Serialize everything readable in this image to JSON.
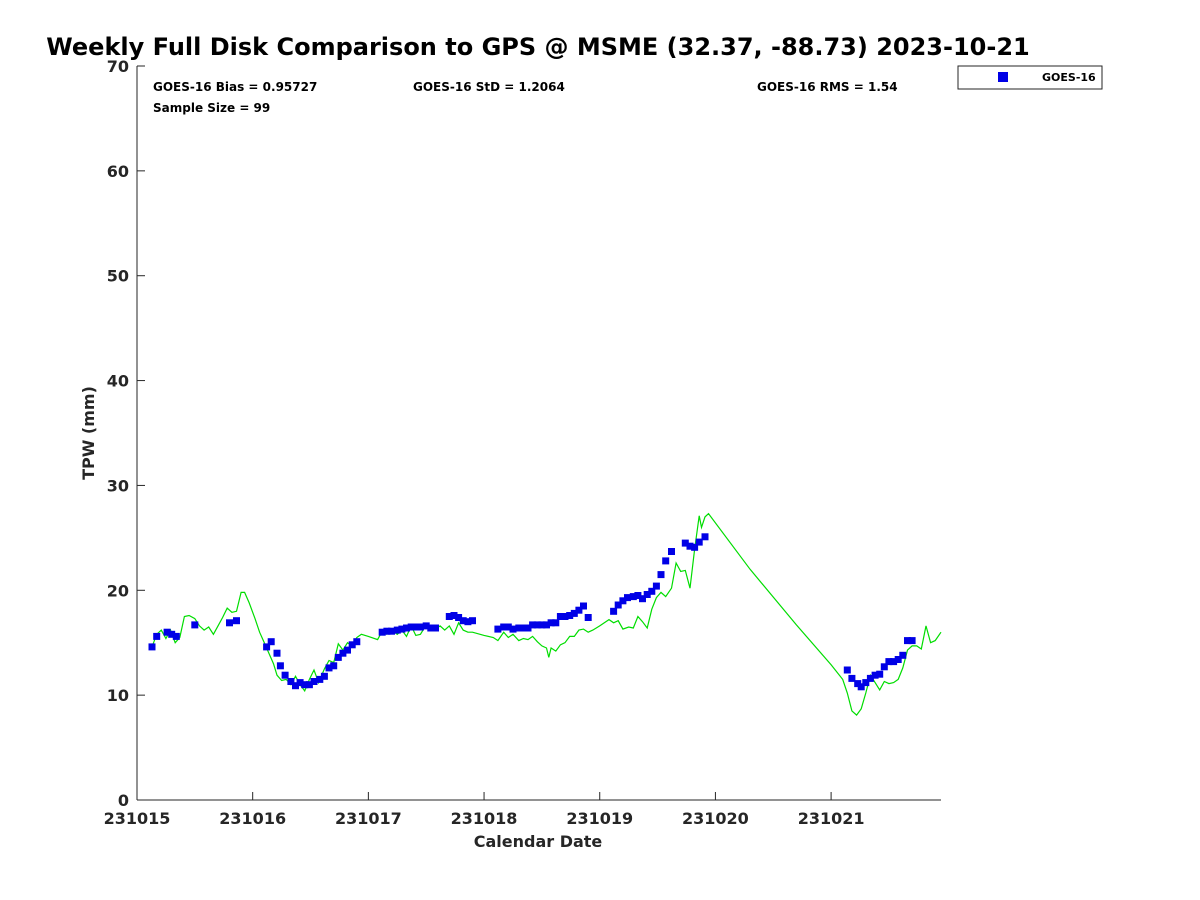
{
  "chart_data": {
    "type": "scatter",
    "title": "Weekly Full Disk Comparison to GPS @ MSME (32.37, -88.73) 2023-10-21",
    "xlabel": "Calendar Date",
    "ylabel": "TPW (mm)",
    "xlim": [
      231015.0,
      231021.95
    ],
    "ylim": [
      0,
      70
    ],
    "yticks": [
      0,
      10,
      20,
      30,
      40,
      50,
      60,
      70
    ],
    "xticks": [
      {
        "value": 231015,
        "label": "231015"
      },
      {
        "value": 231016,
        "label": "231016"
      },
      {
        "value": 231017,
        "label": "231017"
      },
      {
        "value": 231018,
        "label": "231018"
      },
      {
        "value": 231019,
        "label": "231019"
      },
      {
        "value": 231020,
        "label": "231020"
      },
      {
        "value": 231021,
        "label": "231021"
      }
    ],
    "grid": false,
    "legend": {
      "position": "top-right",
      "entries": [
        "GOES-16"
      ]
    },
    "stats": {
      "bias": "GOES-16 Bias = 0.95727",
      "std": "GOES-16 StD = 1.2064",
      "rms": "GOES-16 RMS = 1.54",
      "sample_size": "Sample Size = 99"
    },
    "colors": {
      "goes": "#0000e6",
      "gps": "#00dd00"
    },
    "series": [
      {
        "name": "GOES-16",
        "marker": "square",
        "points": [
          [
            231015.13,
            14.6
          ],
          [
            231015.17,
            15.6
          ],
          [
            231015.26,
            16.0
          ],
          [
            231015.3,
            15.8
          ],
          [
            231015.34,
            15.6
          ],
          [
            231015.5,
            16.7
          ],
          [
            231015.8,
            16.9
          ],
          [
            231015.86,
            17.1
          ],
          [
            231016.12,
            14.6
          ],
          [
            231016.16,
            15.1
          ],
          [
            231016.21,
            14.0
          ],
          [
            231016.24,
            12.8
          ],
          [
            231016.28,
            11.9
          ],
          [
            231016.33,
            11.3
          ],
          [
            231016.37,
            10.9
          ],
          [
            231016.41,
            11.2
          ],
          [
            231016.45,
            11.0
          ],
          [
            231016.49,
            11.0
          ],
          [
            231016.53,
            11.3
          ],
          [
            231016.58,
            11.5
          ],
          [
            231016.62,
            11.8
          ],
          [
            231016.66,
            12.6
          ],
          [
            231016.7,
            12.8
          ],
          [
            231016.74,
            13.6
          ],
          [
            231016.78,
            14.0
          ],
          [
            231016.82,
            14.3
          ],
          [
            231016.86,
            14.8
          ],
          [
            231016.9,
            15.1
          ],
          [
            231017.12,
            16.0
          ],
          [
            231017.16,
            16.1
          ],
          [
            231017.2,
            16.1
          ],
          [
            231017.25,
            16.2
          ],
          [
            231017.29,
            16.3
          ],
          [
            231017.33,
            16.4
          ],
          [
            231017.37,
            16.5
          ],
          [
            231017.41,
            16.5
          ],
          [
            231017.45,
            16.5
          ],
          [
            231017.5,
            16.6
          ],
          [
            231017.54,
            16.4
          ],
          [
            231017.58,
            16.4
          ],
          [
            231017.7,
            17.5
          ],
          [
            231017.74,
            17.6
          ],
          [
            231017.78,
            17.4
          ],
          [
            231017.82,
            17.1
          ],
          [
            231017.86,
            17.0
          ],
          [
            231017.9,
            17.1
          ],
          [
            231018.12,
            16.3
          ],
          [
            231018.17,
            16.5
          ],
          [
            231018.21,
            16.5
          ],
          [
            231018.25,
            16.3
          ],
          [
            231018.3,
            16.4
          ],
          [
            231018.34,
            16.4
          ],
          [
            231018.38,
            16.4
          ],
          [
            231018.42,
            16.7
          ],
          [
            231018.46,
            16.7
          ],
          [
            231018.5,
            16.7
          ],
          [
            231018.54,
            16.7
          ],
          [
            231018.58,
            16.9
          ],
          [
            231018.62,
            16.9
          ],
          [
            231018.66,
            17.5
          ],
          [
            231018.7,
            17.5
          ],
          [
            231018.74,
            17.6
          ],
          [
            231018.78,
            17.8
          ],
          [
            231018.82,
            18.1
          ],
          [
            231018.86,
            18.5
          ],
          [
            231018.9,
            17.4
          ],
          [
            231019.12,
            18.0
          ],
          [
            231019.16,
            18.6
          ],
          [
            231019.2,
            19.0
          ],
          [
            231019.24,
            19.3
          ],
          [
            231019.29,
            19.4
          ],
          [
            231019.33,
            19.5
          ],
          [
            231019.37,
            19.2
          ],
          [
            231019.41,
            19.6
          ],
          [
            231019.45,
            19.9
          ],
          [
            231019.49,
            20.4
          ],
          [
            231019.53,
            21.5
          ],
          [
            231019.57,
            22.8
          ],
          [
            231019.62,
            23.7
          ],
          [
            231019.74,
            24.5
          ],
          [
            231019.78,
            24.2
          ],
          [
            231019.82,
            24.1
          ],
          [
            231019.86,
            24.6
          ],
          [
            231019.91,
            25.1
          ],
          [
            231021.14,
            12.4
          ],
          [
            231021.18,
            11.6
          ],
          [
            231021.23,
            11.1
          ],
          [
            231021.26,
            10.8
          ],
          [
            231021.3,
            11.2
          ],
          [
            231021.34,
            11.6
          ],
          [
            231021.38,
            11.9
          ],
          [
            231021.42,
            12.0
          ],
          [
            231021.46,
            12.7
          ],
          [
            231021.5,
            13.2
          ],
          [
            231021.54,
            13.2
          ],
          [
            231021.58,
            13.4
          ],
          [
            231021.62,
            13.8
          ],
          [
            231021.66,
            15.2
          ],
          [
            231021.7,
            15.2
          ]
        ]
      },
      {
        "name": "GPS",
        "marker": "line",
        "points": [
          [
            231015.13,
            14.6
          ],
          [
            231015.17,
            15.8
          ],
          [
            231015.21,
            16.2
          ],
          [
            231015.25,
            15.4
          ],
          [
            231015.29,
            16.2
          ],
          [
            231015.33,
            15.0
          ],
          [
            231015.37,
            15.5
          ],
          [
            231015.41,
            17.5
          ],
          [
            231015.45,
            17.6
          ],
          [
            231015.5,
            17.3
          ],
          [
            231015.54,
            16.6
          ],
          [
            231015.58,
            16.2
          ],
          [
            231015.62,
            16.5
          ],
          [
            231015.66,
            15.8
          ],
          [
            231015.7,
            16.6
          ],
          [
            231015.74,
            17.4
          ],
          [
            231015.78,
            18.3
          ],
          [
            231015.82,
            17.9
          ],
          [
            231015.86,
            18.0
          ],
          [
            231015.9,
            19.8
          ],
          [
            231015.93,
            19.8
          ],
          [
            231015.97,
            18.8
          ],
          [
            231016.02,
            17.3
          ],
          [
            231016.06,
            16.0
          ],
          [
            231016.1,
            15.0
          ],
          [
            231016.14,
            14.0
          ],
          [
            231016.18,
            13.0
          ],
          [
            231016.21,
            11.9
          ],
          [
            231016.25,
            11.4
          ],
          [
            231016.29,
            11.5
          ],
          [
            231016.33,
            11.0
          ],
          [
            231016.37,
            11.8
          ],
          [
            231016.41,
            11.0
          ],
          [
            231016.45,
            10.4
          ],
          [
            231016.49,
            11.5
          ],
          [
            231016.53,
            12.4
          ],
          [
            231016.57,
            11.2
          ],
          [
            231016.62,
            12.5
          ],
          [
            231016.66,
            13.3
          ],
          [
            231016.7,
            13.1
          ],
          [
            231016.74,
            14.9
          ],
          [
            231016.78,
            14.3
          ],
          [
            231016.82,
            15.0
          ],
          [
            231016.86,
            14.7
          ],
          [
            231016.9,
            15.5
          ],
          [
            231016.94,
            15.8
          ],
          [
            231017.0,
            15.6
          ],
          [
            231017.08,
            15.3
          ],
          [
            231017.12,
            16.1
          ],
          [
            231017.16,
            15.8
          ],
          [
            231017.2,
            16.2
          ],
          [
            231017.25,
            15.8
          ],
          [
            231017.29,
            16.2
          ],
          [
            231017.33,
            15.6
          ],
          [
            231017.37,
            16.6
          ],
          [
            231017.41,
            15.7
          ],
          [
            231017.45,
            15.8
          ],
          [
            231017.5,
            16.7
          ],
          [
            231017.54,
            16.2
          ],
          [
            231017.58,
            16.3
          ],
          [
            231017.62,
            16.6
          ],
          [
            231017.66,
            16.2
          ],
          [
            231017.7,
            16.6
          ],
          [
            231017.74,
            15.8
          ],
          [
            231017.78,
            16.9
          ],
          [
            231017.82,
            16.2
          ],
          [
            231017.86,
            16.0
          ],
          [
            231017.9,
            16.0
          ],
          [
            231018.0,
            15.7
          ],
          [
            231018.08,
            15.5
          ],
          [
            231018.12,
            15.2
          ],
          [
            231018.17,
            16.0
          ],
          [
            231018.21,
            15.5
          ],
          [
            231018.25,
            15.8
          ],
          [
            231018.3,
            15.2
          ],
          [
            231018.34,
            15.4
          ],
          [
            231018.38,
            15.3
          ],
          [
            231018.42,
            15.6
          ],
          [
            231018.46,
            15.1
          ],
          [
            231018.5,
            14.7
          ],
          [
            231018.54,
            14.5
          ],
          [
            231018.56,
            13.6
          ],
          [
            231018.58,
            14.5
          ],
          [
            231018.62,
            14.2
          ],
          [
            231018.66,
            14.8
          ],
          [
            231018.7,
            15.0
          ],
          [
            231018.74,
            15.6
          ],
          [
            231018.78,
            15.6
          ],
          [
            231018.82,
            16.2
          ],
          [
            231018.86,
            16.3
          ],
          [
            231018.9,
            16.0
          ],
          [
            231018.94,
            16.2
          ],
          [
            231019.0,
            16.6
          ],
          [
            231019.08,
            17.2
          ],
          [
            231019.12,
            16.9
          ],
          [
            231019.16,
            17.1
          ],
          [
            231019.2,
            16.3
          ],
          [
            231019.25,
            16.5
          ],
          [
            231019.29,
            16.4
          ],
          [
            231019.33,
            17.5
          ],
          [
            231019.37,
            17.0
          ],
          [
            231019.41,
            16.4
          ],
          [
            231019.45,
            18.2
          ],
          [
            231019.49,
            19.3
          ],
          [
            231019.53,
            19.8
          ],
          [
            231019.57,
            19.4
          ],
          [
            231019.62,
            20.2
          ],
          [
            231019.66,
            22.6
          ],
          [
            231019.7,
            21.8
          ],
          [
            231019.74,
            21.9
          ],
          [
            231019.78,
            20.2
          ],
          [
            231019.82,
            23.9
          ],
          [
            231019.86,
            27.1
          ],
          [
            231019.88,
            26.0
          ],
          [
            231019.91,
            27.0
          ],
          [
            231019.94,
            27.3
          ],
          [
            231020.3,
            22.0
          ],
          [
            231020.7,
            16.7
          ],
          [
            231021.0,
            12.9
          ],
          [
            231021.1,
            11.5
          ],
          [
            231021.14,
            10.2
          ],
          [
            231021.18,
            8.5
          ],
          [
            231021.22,
            8.1
          ],
          [
            231021.26,
            8.7
          ],
          [
            231021.3,
            10.2
          ],
          [
            231021.34,
            11.9
          ],
          [
            231021.38,
            11.2
          ],
          [
            231021.42,
            10.5
          ],
          [
            231021.46,
            11.3
          ],
          [
            231021.5,
            11.1
          ],
          [
            231021.54,
            11.2
          ],
          [
            231021.58,
            11.5
          ],
          [
            231021.62,
            12.6
          ],
          [
            231021.66,
            14.3
          ],
          [
            231021.7,
            14.7
          ],
          [
            231021.74,
            14.7
          ],
          [
            231021.78,
            14.4
          ],
          [
            231021.82,
            16.6
          ],
          [
            231021.86,
            15.0
          ],
          [
            231021.9,
            15.2
          ],
          [
            231021.95,
            16.0
          ]
        ]
      }
    ]
  }
}
